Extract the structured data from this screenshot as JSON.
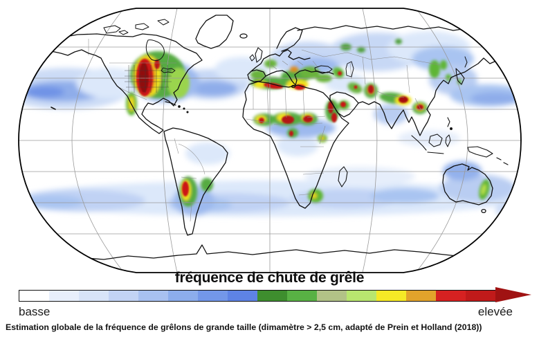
{
  "title": "fréquence de chute de grêle",
  "colorbar": {
    "low_label": "basse",
    "high_label": "elevée",
    "segments": [
      "#ffffff",
      "#e8effb",
      "#d8e4f8",
      "#c2d3f4",
      "#a8c1f0",
      "#8cadec",
      "#7397e9",
      "#5e83e5",
      "#3e8e2e",
      "#58b144",
      "#b2c287",
      "#b8e66f",
      "#f5e926",
      "#e2a32b",
      "#d62121",
      "#c01a1a"
    ],
    "arrow_color": "#a01212"
  },
  "caption": "Estimation globale de la fréquence de grêlons de grande taille (dimamètre > 2,5 cm, adapté de Prein et Holland (2018))",
  "map": {
    "ocean_color": "#ffffff",
    "coastline_color": "#111111",
    "graticule_color": "#9a9a9a",
    "outline_color": "#000000"
  }
}
